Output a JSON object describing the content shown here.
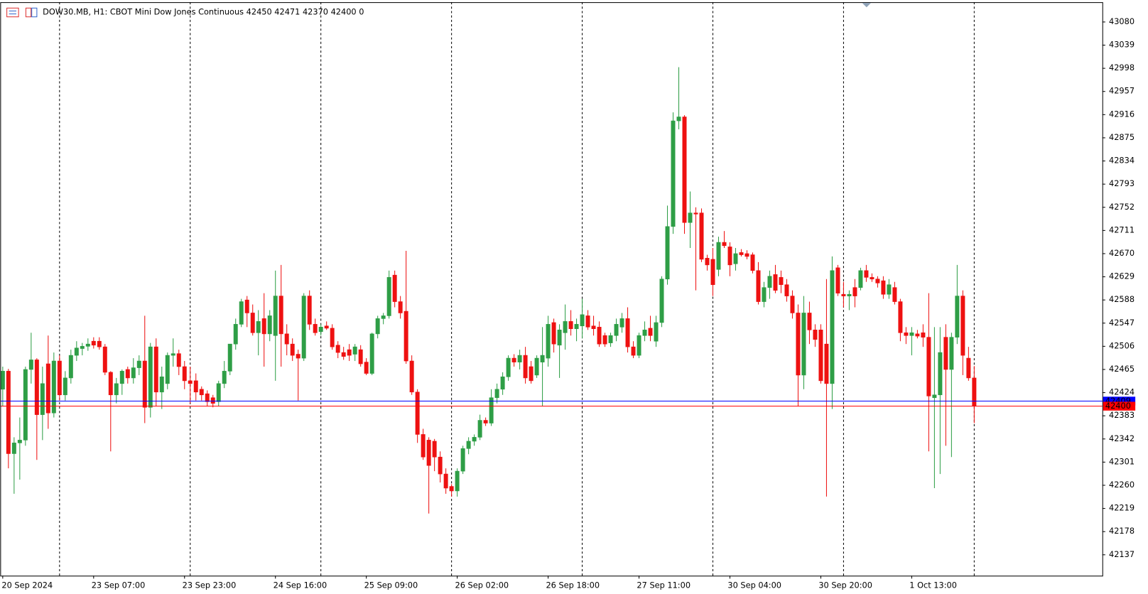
{
  "chart_data": {
    "type": "candlestick",
    "title": "DOW30.MB, H1:  CBOT Mini Dow Jones Continuous  42450 42471 42370 42400  0",
    "up_color": "#2e9e46",
    "down_color": "#ee1111",
    "ylim": [
      42100,
      43115
    ],
    "yticks": [
      43080,
      43039,
      42998,
      42957,
      42916,
      42875,
      42834,
      42793,
      42752,
      42711,
      42670,
      42629,
      42588,
      42547,
      42506,
      42465,
      42424,
      42383,
      42342,
      42301,
      42260,
      42219,
      42178,
      42137
    ],
    "price_lines": [
      {
        "value": 42409,
        "color": "#0000ff"
      },
      {
        "value": 42400,
        "color": "#ff0000"
      }
    ],
    "categories": [
      "20 Sep 2024",
      null,
      null,
      null,
      null,
      null,
      null,
      null,
      null,
      null,
      null,
      null,
      null,
      null,
      null,
      null,
      "23 Sep 07:00",
      null,
      null,
      null,
      null,
      null,
      null,
      null,
      null,
      null,
      null,
      null,
      null,
      null,
      null,
      null,
      "23 Sep 23:00",
      null,
      null,
      null,
      null,
      null,
      null,
      null,
      null,
      null,
      null,
      null,
      null,
      null,
      null,
      null,
      "24 Sep 16:00",
      null,
      null,
      null,
      null,
      null,
      null,
      null,
      null,
      null,
      null,
      null,
      null,
      null,
      null,
      null,
      "25 Sep 09:00",
      null,
      null,
      null,
      null,
      null,
      null,
      null,
      null,
      null,
      null,
      null,
      null,
      null,
      null,
      null,
      "26 Sep 02:00",
      null,
      null,
      null,
      null,
      null,
      null,
      null,
      null,
      null,
      null,
      null,
      null,
      null,
      null,
      null,
      "26 Sep 18:00",
      null,
      null,
      null,
      null,
      null,
      null,
      null,
      null,
      null,
      null,
      null,
      null,
      null,
      null,
      null,
      "27 Sep 11:00",
      null,
      null,
      null,
      null,
      null,
      null,
      null,
      null,
      null,
      null,
      null,
      null,
      null,
      null,
      null,
      "30 Sep 04:00",
      null,
      null,
      null,
      null,
      null,
      null,
      null,
      null,
      null,
      null,
      null,
      null,
      null,
      null,
      null,
      "30 Sep 20:00",
      null,
      null,
      null,
      null,
      null,
      null,
      null,
      null,
      null,
      null,
      null,
      null,
      null,
      null,
      null,
      "1 Oct 13:00",
      null,
      null,
      null,
      null,
      null,
      null,
      null,
      null,
      null,
      null,
      null
    ],
    "open": [
      42430,
      42462,
      42316,
      42335,
      42340,
      42465,
      42482,
      42385,
      42475,
      42388,
      42480,
      42420,
      42450,
      42490,
      42502,
      42506,
      42515,
      42515,
      42505,
      42460,
      42420,
      42440,
      42465,
      42450,
      42468,
      42480,
      42398,
      42505,
      42425,
      42440,
      42490,
      42493,
      42470,
      42445,
      42445,
      42430,
      42422,
      42415,
      42408,
      42440,
      42462,
      42510,
      42545,
      42588,
      42565,
      42530,
      42555,
      42528,
      42525,
      42595,
      42528,
      42510,
      42492,
      42485,
      42595,
      42545,
      42532,
      42542,
      42538,
      42508,
      42495,
      42500,
      42492,
      42500,
      42478,
      42458,
      42528,
      42555,
      42560,
      42632,
      42585,
      42568,
      42480,
      42425,
      42350,
      42340,
      42338,
      42310,
      42280,
      42258,
      42250,
      42285,
      42325,
      42338,
      42345,
      42375,
      42370,
      42415,
      42430,
      42452,
      42485,
      42478,
      42490,
      42470,
      42455,
      42478,
      42485,
      42548,
      42508,
      42530,
      42550,
      42537,
      42542,
      42560,
      42542,
      42540,
      42525,
      42512,
      42525,
      42540,
      42555,
      42505,
      42490,
      42525,
      42538,
      42515,
      42548,
      42625,
      42718,
      42905,
      42912,
      42725,
      42742,
      42742,
      42662,
      42660,
      42642,
      42690,
      42682,
      42652,
      42672,
      42670,
      42668,
      42640,
      42585,
      42610,
      42633,
      42628,
      42615,
      42595,
      42565,
      42455,
      42565,
      42535,
      42535,
      42510,
      42440,
      42645,
      42598,
      42595,
      42610,
      42610,
      42640,
      42628,
      42625,
      42622,
      42598,
      42610,
      42585,
      42530,
      42525,
      42528,
      42530,
      42522,
      42415,
      42420,
      42522,
      42465,
      42522,
      42595,
      42485,
      42450
    ],
    "high": [
      42470,
      42466,
      42345,
      42380,
      42470,
      42530,
      42485,
      42470,
      42525,
      42495,
      42490,
      42462,
      42500,
      42515,
      42512,
      42520,
      42522,
      42522,
      42510,
      42462,
      42450,
      42465,
      42470,
      42485,
      42490,
      42560,
      42512,
      42520,
      42470,
      42495,
      42520,
      42500,
      42480,
      42470,
      42458,
      42435,
      42428,
      42420,
      42445,
      42480,
      42510,
      42555,
      42590,
      42595,
      42580,
      42570,
      42600,
      42570,
      42640,
      42650,
      42545,
      42520,
      42500,
      42600,
      42605,
      42555,
      42545,
      42550,
      42545,
      42515,
      42505,
      42510,
      42510,
      42508,
      42485,
      42530,
      42560,
      42565,
      42640,
      42640,
      42595,
      42675,
      42490,
      42430,
      42360,
      42345,
      42342,
      42320,
      42290,
      42262,
      42290,
      42330,
      42345,
      42350,
      42385,
      42380,
      42430,
      42440,
      42460,
      42490,
      42492,
      42500,
      42505,
      42480,
      42490,
      42540,
      42560,
      42555,
      42545,
      42580,
      42570,
      42555,
      42590,
      42570,
      42560,
      42550,
      42530,
      42530,
      42555,
      42565,
      42575,
      42515,
      42530,
      42550,
      42560,
      42560,
      42630,
      42755,
      42920,
      43000,
      42915,
      42780,
      42752,
      42750,
      42668,
      42680,
      42700,
      42710,
      42690,
      42680,
      42678,
      42676,
      42672,
      42655,
      42620,
      42640,
      42650,
      42640,
      42625,
      42605,
      42580,
      42595,
      42585,
      42545,
      42545,
      42625,
      42665,
      42650,
      42620,
      42605,
      42625,
      42645,
      42650,
      42635,
      42630,
      42630,
      42625,
      42620,
      42590,
      42540,
      42540,
      42535,
      42545,
      42600,
      42540,
      42540,
      42545,
      42530,
      42650,
      42605,
      42505,
      42471
    ],
    "low": [
      42400,
      42290,
      42245,
      42270,
      42330,
      42440,
      42305,
      42340,
      42360,
      42380,
      42410,
      42410,
      42440,
      42480,
      42490,
      42498,
      42502,
      42500,
      42455,
      42320,
      42405,
      42420,
      42440,
      42440,
      42455,
      42370,
      42380,
      42400,
      42395,
      42430,
      42470,
      42455,
      42430,
      42405,
      42410,
      42410,
      42400,
      42398,
      42400,
      42432,
      42455,
      42500,
      42540,
      42540,
      42525,
      42490,
      42470,
      42515,
      42445,
      42470,
      42490,
      42480,
      42410,
      42480,
      42535,
      42525,
      42525,
      42535,
      42500,
      42485,
      42482,
      42480,
      42480,
      42470,
      42455,
      42455,
      42520,
      42545,
      42555,
      42575,
      42555,
      42475,
      42420,
      42335,
      42305,
      42210,
      42285,
      42265,
      42245,
      42240,
      42240,
      42280,
      42315,
      42330,
      42340,
      42365,
      42365,
      42405,
      42420,
      42445,
      42470,
      42465,
      42440,
      42440,
      42450,
      42400,
      42470,
      42495,
      42450,
      42500,
      42525,
      42515,
      42520,
      42535,
      42525,
      42505,
      42505,
      42505,
      42515,
      42530,
      42495,
      42485,
      42485,
      42515,
      42515,
      42505,
      42540,
      42615,
      42705,
      42890,
      42705,
      42680,
      42605,
      42655,
      42640,
      42595,
      42630,
      42680,
      42630,
      42640,
      42665,
      42660,
      42635,
      42580,
      42575,
      42590,
      42600,
      42600,
      42585,
      42555,
      42400,
      42430,
      42510,
      42505,
      42440,
      42240,
      42395,
      42595,
      42575,
      42570,
      42575,
      42605,
      42620,
      42620,
      42610,
      42590,
      42590,
      42580,
      42515,
      42510,
      42490,
      42520,
      42505,
      42320,
      42255,
      42280,
      42330,
      42310,
      42510,
      42455,
      42445,
      42370
    ],
    "close": [
      42462,
      42316,
      42335,
      42340,
      42465,
      42482,
      42385,
      42440,
      42388,
      42480,
      42420,
      42450,
      42490,
      42503,
      42506,
      42510,
      42508,
      42505,
      42460,
      42420,
      42440,
      42462,
      42450,
      42468,
      42480,
      42398,
      42505,
      42425,
      42452,
      42490,
      42493,
      42470,
      42445,
      42440,
      42425,
      42420,
      42408,
      42405,
      42440,
      42462,
      42510,
      42545,
      42585,
      42565,
      42530,
      42550,
      42528,
      42560,
      42595,
      42528,
      42510,
      42490,
      42485,
      42595,
      42545,
      42530,
      42540,
      42538,
      42505,
      42495,
      42488,
      42490,
      42505,
      42475,
      42458,
      42528,
      42555,
      42560,
      42628,
      42585,
      42565,
      42480,
      42425,
      42350,
      42310,
      42295,
      42310,
      42280,
      42255,
      42250,
      42285,
      42325,
      42338,
      42345,
      42375,
      42370,
      42415,
      42430,
      42452,
      42485,
      42478,
      42490,
      42450,
      42445,
      42485,
      42490,
      42545,
      42510,
      42535,
      42550,
      42537,
      42545,
      42562,
      42540,
      42537,
      42510,
      42510,
      42525,
      42545,
      42555,
      42505,
      42490,
      42525,
      42535,
      42525,
      42548,
      42625,
      42718,
      42905,
      42912,
      42725,
      42742,
      42740,
      42660,
      42650,
      42615,
      42690,
      42684,
      42650,
      42670,
      42668,
      42665,
      42640,
      42585,
      42610,
      42630,
      42605,
      42615,
      42595,
      42565,
      42455,
      42565,
      42535,
      42518,
      42445,
      42440,
      42640,
      42600,
      42595,
      42598,
      42595,
      42640,
      42628,
      42625,
      42618,
      42598,
      42615,
      42585,
      42530,
      42525,
      42530,
      42524,
      42522,
      42418,
      42420,
      42495,
      42465,
      42522,
      42595,
      42490,
      42450,
      42400
    ]
  }
}
